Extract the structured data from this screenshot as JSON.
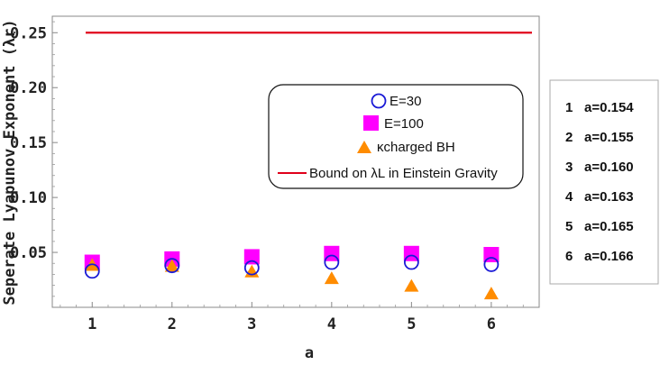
{
  "chart_data": {
    "type": "scatter",
    "x": [
      1,
      2,
      3,
      4,
      5,
      6
    ],
    "xlim": [
      0.5,
      6.6
    ],
    "ylim": [
      0.0,
      0.265
    ],
    "xticks": [
      "1",
      "2",
      "3",
      "4",
      "5",
      "6"
    ],
    "yticks": [
      "0.05",
      "0.10",
      "0.15",
      "0.20",
      "0.25"
    ],
    "xlabel": "a",
    "ylabel": "Seperate Lyapunov Exponent (λr)",
    "grid": false,
    "series": [
      {
        "name": "E=30",
        "marker": "open-circle",
        "color": "#1a1ad6",
        "values": [
          0.033,
          0.038,
          0.036,
          0.041,
          0.041,
          0.039
        ]
      },
      {
        "name": "E=100",
        "marker": "filled-square",
        "color": "#ff00ff",
        "values": [
          0.041,
          0.044,
          0.046,
          0.049,
          0.049,
          0.048
        ]
      },
      {
        "name": "κcharged BH",
        "marker": "filled-triangle",
        "color": "#ff8c00",
        "values": [
          0.039,
          0.038,
          0.033,
          0.027,
          0.02,
          0.013
        ]
      },
      {
        "name": "Bound on λL in Einstein Gravity",
        "marker": "line",
        "color": "#e0001a",
        "constant": 0.25
      }
    ],
    "legend_position": "center-right"
  },
  "side_legend": [
    {
      "index": "1",
      "label": "a=0.154"
    },
    {
      "index": "2",
      "label": "a=0.155"
    },
    {
      "index": "3",
      "label": "a=0.160"
    },
    {
      "index": "4",
      "label": "a=0.163"
    },
    {
      "index": "5",
      "label": "a=0.165"
    },
    {
      "index": "6",
      "label": "a=0.166"
    }
  ]
}
